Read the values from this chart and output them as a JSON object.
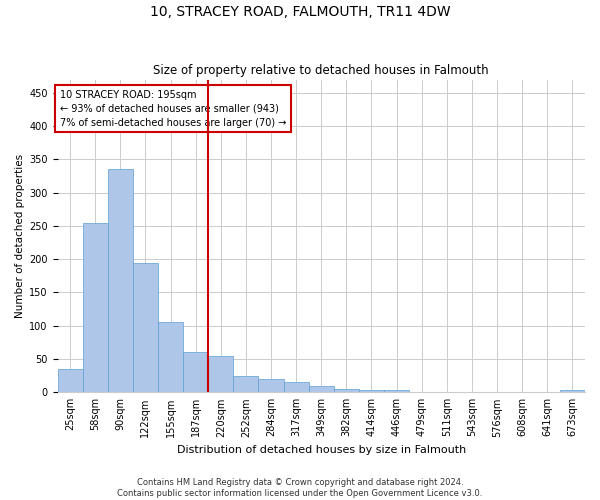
{
  "title": "10, STRACEY ROAD, FALMOUTH, TR11 4DW",
  "subtitle": "Size of property relative to detached houses in Falmouth",
  "xlabel": "Distribution of detached houses by size in Falmouth",
  "ylabel": "Number of detached properties",
  "footer_line1": "Contains HM Land Registry data © Crown copyright and database right 2024.",
  "footer_line2": "Contains public sector information licensed under the Open Government Licence v3.0.",
  "bin_labels": [
    "25sqm",
    "58sqm",
    "90sqm",
    "122sqm",
    "155sqm",
    "187sqm",
    "220sqm",
    "252sqm",
    "284sqm",
    "317sqm",
    "349sqm",
    "382sqm",
    "414sqm",
    "446sqm",
    "479sqm",
    "511sqm",
    "543sqm",
    "576sqm",
    "608sqm",
    "641sqm",
    "673sqm"
  ],
  "bar_values": [
    35,
    255,
    335,
    195,
    105,
    60,
    55,
    25,
    20,
    15,
    10,
    5,
    3,
    3,
    1,
    1,
    1,
    1,
    1,
    1,
    3
  ],
  "bar_color": "#aec6e8",
  "bar_edgecolor": "#5a9fd4",
  "property_line_x": 6.0,
  "annotation_text": "10 STRACEY ROAD: 195sqm\n← 93% of detached houses are smaller (943)\n7% of semi-detached houses are larger (70) →",
  "annotation_box_color": "#ffffff",
  "annotation_box_edgecolor": "#cc0000",
  "vline_color": "#cc0000",
  "ylim": [
    0,
    470
  ],
  "yticks": [
    0,
    50,
    100,
    150,
    200,
    250,
    300,
    350,
    400,
    450
  ],
  "background_color": "#ffffff",
  "grid_color": "#cccccc",
  "title_fontsize": 10,
  "subtitle_fontsize": 8.5,
  "xlabel_fontsize": 8,
  "ylabel_fontsize": 7.5,
  "tick_fontsize": 7,
  "annotation_fontsize": 7,
  "footer_fontsize": 6
}
